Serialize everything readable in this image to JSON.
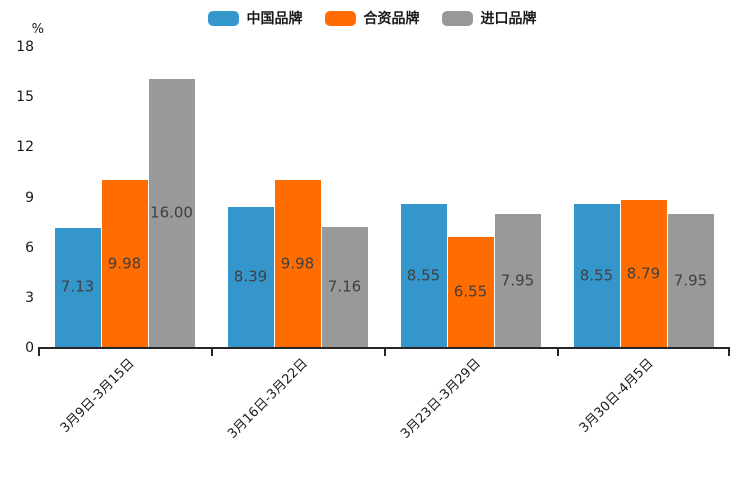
{
  "chart": {
    "unit_label": "%",
    "legend_items": [
      {
        "label": "中国品牌",
        "color": "#3596CB"
      },
      {
        "label": "合资品牌",
        "color": "#FF6C00"
      },
      {
        "label": "进口品牌",
        "color": "#999999"
      }
    ]
  },
  "chart_data": {
    "type": "bar",
    "title": "",
    "categories": [
      "3月9日-3月15日",
      "3月16日-3月22日",
      "3月23日-3月29日",
      "3月30日-4月5日"
    ],
    "series": [
      {
        "name": "中国品牌",
        "color": "#3596CB",
        "values": [
          7.13,
          8.39,
          8.55,
          8.55
        ]
      },
      {
        "name": "合资品牌",
        "color": "#FF6C00",
        "values": [
          9.98,
          9.98,
          6.55,
          8.79
        ]
      },
      {
        "name": "进口品牌",
        "color": "#999999",
        "values": [
          16.0,
          7.16,
          7.95,
          7.95
        ]
      }
    ],
    "xlabel": "",
    "ylabel": "%",
    "ylim": [
      0,
      18
    ],
    "yticks": [
      0,
      3,
      6,
      9,
      12,
      15,
      18
    ],
    "value_labels_shown": true,
    "value_label_decimals": 2,
    "legend_position": "top-center",
    "grid": false
  }
}
